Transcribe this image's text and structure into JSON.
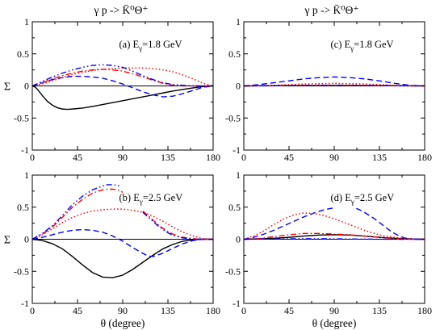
{
  "columns": [
    {
      "title": "γ p -> K̄⁰Θ⁺"
    },
    {
      "title": "γ p -> K̄⁰Θ⁺"
    }
  ],
  "chart_data": [
    {
      "type": "line",
      "panel_label": "(a) E",
      "panel_sub": "γ",
      "panel_energy": "=1.8 GeV",
      "ylabel": "Σ",
      "xlabel": "",
      "xlim": [
        0,
        180
      ],
      "ylim": [
        -1,
        1
      ],
      "xticks": [
        "0",
        "45",
        "90",
        "135",
        "180"
      ],
      "yticks": [
        "-1",
        "-0.5",
        "0",
        "0.5",
        "1"
      ],
      "series": [
        {
          "style": "solid",
          "color": "#000000",
          "x": [
            0,
            3,
            6,
            10,
            15,
            20,
            25,
            30,
            35,
            40,
            50,
            60,
            70,
            80,
            90,
            100,
            110,
            120,
            130,
            140,
            150,
            160,
            170,
            175,
            180
          ],
          "y": [
            0,
            -0.02,
            -0.07,
            -0.15,
            -0.24,
            -0.3,
            -0.34,
            -0.36,
            -0.365,
            -0.36,
            -0.345,
            -0.32,
            -0.29,
            -0.26,
            -0.23,
            -0.2,
            -0.17,
            -0.14,
            -0.11,
            -0.08,
            -0.055,
            -0.03,
            -0.01,
            -0.004,
            0
          ]
        },
        {
          "style": "dashed",
          "color": "#0000ff",
          "x": [
            0,
            10,
            20,
            30,
            40,
            50,
            60,
            70,
            80,
            90,
            100,
            110,
            120,
            130,
            140,
            150,
            160,
            170,
            180
          ],
          "y": [
            0,
            0.05,
            0.1,
            0.13,
            0.15,
            0.15,
            0.14,
            0.12,
            0.08,
            0.03,
            -0.03,
            -0.09,
            -0.14,
            -0.17,
            -0.16,
            -0.12,
            -0.07,
            -0.02,
            0
          ]
        },
        {
          "style": "dotted",
          "color": "#ff0000",
          "x": [
            0,
            10,
            20,
            30,
            40,
            50,
            60,
            70,
            80,
            90,
            100,
            110,
            120,
            130,
            140,
            150,
            160,
            170,
            180
          ],
          "y": [
            0,
            0.03,
            0.08,
            0.13,
            0.18,
            0.21,
            0.24,
            0.26,
            0.27,
            0.28,
            0.28,
            0.28,
            0.27,
            0.25,
            0.22,
            0.17,
            0.11,
            0.04,
            0
          ]
        },
        {
          "style": "dashdot",
          "color": "#ff0000",
          "x": [
            0,
            10,
            20,
            30,
            40,
            50,
            60,
            70,
            80,
            90,
            100,
            110,
            120,
            130,
            140,
            150,
            160,
            170,
            180
          ],
          "y": [
            0,
            0.05,
            0.11,
            0.16,
            0.2,
            0.23,
            0.25,
            0.26,
            0.25,
            0.23,
            0.19,
            0.14,
            0.09,
            0.04,
            0.01,
            0,
            0,
            0,
            0
          ]
        },
        {
          "style": "dashdotdot",
          "color": "#0000ff",
          "x": [
            0,
            10,
            20,
            30,
            40,
            50,
            60,
            70,
            80,
            90,
            100,
            110,
            120,
            130,
            140,
            150,
            160,
            170,
            180
          ],
          "y": [
            0,
            0.07,
            0.14,
            0.2,
            0.25,
            0.29,
            0.32,
            0.33,
            0.32,
            0.29,
            0.23,
            0.16,
            0.1,
            0.05,
            0.02,
            0.01,
            0,
            0,
            0
          ]
        }
      ]
    },
    {
      "type": "line",
      "panel_label": "(c) E",
      "panel_sub": "γ",
      "panel_energy": "=1.8 GeV",
      "ylabel": "",
      "xlabel": "",
      "xlim": [
        0,
        180
      ],
      "ylim": [
        -1,
        1
      ],
      "xticks": [
        "0",
        "45",
        "90",
        "135",
        "180"
      ],
      "yticks": [
        "-1",
        "-0.5",
        "0",
        "0.5",
        "1"
      ],
      "series": [
        {
          "style": "solid",
          "color": "#000000",
          "x": [
            0,
            30,
            60,
            90,
            120,
            150,
            180
          ],
          "y": [
            0,
            0.003,
            0.005,
            0.006,
            0.005,
            0.003,
            0
          ]
        },
        {
          "style": "dashed",
          "color": "#0000ff",
          "x": [
            0,
            15,
            30,
            45,
            60,
            75,
            90,
            105,
            120,
            135,
            150,
            165,
            180
          ],
          "y": [
            0,
            0.02,
            0.05,
            0.08,
            0.11,
            0.13,
            0.14,
            0.13,
            0.11,
            0.08,
            0.04,
            0.01,
            0
          ]
        },
        {
          "style": "dotted",
          "color": "#ff0000",
          "x": [
            0,
            30,
            60,
            90,
            120,
            150,
            180
          ],
          "y": [
            0,
            0.01,
            0.03,
            0.04,
            0.03,
            0.01,
            0
          ]
        },
        {
          "style": "dashdot",
          "color": "#ff0000",
          "x": [
            0,
            30,
            60,
            90,
            120,
            150,
            180
          ],
          "y": [
            0,
            0.005,
            0.01,
            0.012,
            0.01,
            0.005,
            0
          ]
        },
        {
          "style": "dashdotdot",
          "color": "#0000ff",
          "x": [
            0,
            30,
            60,
            90,
            120,
            150,
            180
          ],
          "y": [
            0,
            0.004,
            0.008,
            0.01,
            0.008,
            0.004,
            0
          ]
        }
      ]
    },
    {
      "type": "line",
      "panel_label": "(b) E",
      "panel_sub": "γ",
      "panel_energy": "=2.5 GeV",
      "ylabel": "Σ",
      "xlabel": "θ  (degree)",
      "xlim": [
        0,
        180
      ],
      "ylim": [
        -1,
        1
      ],
      "xticks": [
        "0",
        "45",
        "90",
        "135",
        "180"
      ],
      "yticks": [
        "-1",
        "-0.5",
        "0",
        "0.5",
        "1"
      ],
      "series": [
        {
          "style": "solid",
          "color": "#000000",
          "x": [
            0,
            10,
            20,
            30,
            40,
            50,
            60,
            70,
            80,
            90,
            100,
            110,
            120,
            130,
            140,
            150,
            160,
            170,
            175,
            180
          ],
          "y": [
            0,
            -0.02,
            -0.07,
            -0.15,
            -0.27,
            -0.4,
            -0.52,
            -0.59,
            -0.6,
            -0.56,
            -0.47,
            -0.36,
            -0.25,
            -0.15,
            -0.08,
            -0.03,
            -0.01,
            0,
            0,
            0
          ]
        },
        {
          "style": "dashed",
          "color": "#0000ff",
          "x": [
            0,
            10,
            20,
            30,
            40,
            50,
            60,
            70,
            80,
            90,
            100,
            110,
            115,
            120,
            130,
            140,
            150,
            160,
            170,
            180
          ],
          "y": [
            0,
            0.03,
            0.07,
            0.11,
            0.14,
            0.15,
            0.14,
            0.11,
            0.05,
            -0.03,
            -0.13,
            -0.22,
            -0.26,
            -0.27,
            -0.22,
            -0.14,
            -0.07,
            -0.02,
            0,
            0
          ]
        },
        {
          "style": "dotted",
          "color": "#ff0000",
          "x": [
            0,
            10,
            20,
            30,
            40,
            50,
            60,
            70,
            80,
            90,
            100,
            110,
            120,
            130,
            140,
            150,
            160,
            170,
            180
          ],
          "y": [
            0,
            0.07,
            0.16,
            0.26,
            0.34,
            0.4,
            0.44,
            0.46,
            0.47,
            0.47,
            0.45,
            0.42,
            0.36,
            0.28,
            0.19,
            0.11,
            0.05,
            0.01,
            0
          ]
        },
        {
          "style": "dashdot",
          "color": "#ff0000",
          "x": [
            0,
            10,
            20,
            30,
            40,
            50,
            60,
            70,
            75,
            80,
            85,
            88,
            90
          ],
          "y": [
            0,
            0.08,
            0.19,
            0.34,
            0.5,
            0.62,
            0.72,
            0.77,
            0.78,
            0.78,
            0.77,
            0.75,
            0.73
          ]
        },
        {
          "style": "dashdot",
          "color": "#ff0000",
          "x": [
            110,
            115,
            120,
            125,
            130,
            135,
            140,
            145,
            150,
            155,
            160,
            165,
            170,
            175,
            180
          ],
          "y": [
            0.44,
            0.37,
            0.3,
            0.23,
            0.17,
            0.12,
            0.08,
            0.05,
            0.03,
            0.02,
            0.01,
            0,
            0,
            0,
            0
          ]
        },
        {
          "style": "dashdotdot",
          "color": "#0000ff",
          "x": [
            0,
            10,
            20,
            30,
            40,
            50,
            60,
            70,
            75,
            80,
            85,
            88
          ],
          "y": [
            0,
            0.09,
            0.21,
            0.37,
            0.54,
            0.67,
            0.77,
            0.83,
            0.85,
            0.85,
            0.84,
            0.82
          ]
        },
        {
          "style": "dashdotdot",
          "color": "#0000ff",
          "x": [
            110,
            115,
            120,
            125,
            130,
            135,
            140,
            145,
            150,
            155,
            160,
            165,
            170,
            175,
            180
          ],
          "y": [
            0.42,
            0.35,
            0.28,
            0.21,
            0.15,
            0.1,
            0.06,
            0.04,
            0.02,
            0.01,
            0,
            0,
            0,
            0,
            0
          ]
        }
      ]
    },
    {
      "type": "line",
      "panel_label": "(d) E",
      "panel_sub": "γ",
      "panel_energy": "=2.5 GeV",
      "ylabel": "",
      "xlabel": "θ  (degree)",
      "xlim": [
        0,
        180
      ],
      "ylim": [
        -1,
        1
      ],
      "xticks": [
        "0",
        "45",
        "90",
        "135",
        "180"
      ],
      "yticks": [
        "-1",
        "-0.5",
        "0",
        "0.5",
        "1"
      ],
      "series": [
        {
          "style": "solid",
          "color": "#000000",
          "x": [
            0,
            15,
            30,
            45,
            60,
            75,
            90,
            105,
            120,
            135,
            150,
            165,
            180
          ],
          "y": [
            0,
            0.005,
            0.015,
            0.03,
            0.05,
            0.065,
            0.07,
            0.065,
            0.05,
            0.03,
            0.015,
            0.005,
            0
          ]
        },
        {
          "style": "dashed",
          "color": "#0000ff",
          "x": [
            0,
            10,
            20,
            30,
            40,
            50,
            60,
            70,
            80,
            90
          ],
          "y": [
            0,
            0.03,
            0.08,
            0.14,
            0.21,
            0.28,
            0.35,
            0.41,
            0.46,
            0.49
          ]
        },
        {
          "style": "dashed",
          "color": "#0000ff",
          "x": [
            112,
            115,
            120,
            125,
            130,
            135,
            140,
            145,
            150,
            155,
            160,
            165,
            170,
            175,
            180
          ],
          "y": [
            0.48,
            0.46,
            0.42,
            0.37,
            0.32,
            0.26,
            0.2,
            0.14,
            0.09,
            0.05,
            0.02,
            0.01,
            0,
            0,
            0
          ]
        },
        {
          "style": "dotted",
          "color": "#ff0000",
          "x": [
            0,
            10,
            20,
            30,
            40,
            50,
            60,
            70,
            80,
            90,
            100,
            110,
            120,
            130,
            140,
            150,
            160,
            170,
            180
          ],
          "y": [
            0,
            0.05,
            0.13,
            0.23,
            0.32,
            0.38,
            0.41,
            0.4,
            0.37,
            0.32,
            0.26,
            0.2,
            0.14,
            0.09,
            0.05,
            0.03,
            0.01,
            0,
            0
          ]
        },
        {
          "style": "dashdot",
          "color": "#ff0000",
          "x": [
            0,
            15,
            30,
            45,
            60,
            75,
            90,
            105,
            120,
            135,
            150,
            165,
            180
          ],
          "y": [
            0,
            0.01,
            0.04,
            0.07,
            0.09,
            0.09,
            0.08,
            0.07,
            0.05,
            0.03,
            0.01,
            0,
            0
          ]
        },
        {
          "style": "dashdotdot",
          "color": "#0000ff",
          "x": [
            0,
            15,
            30,
            45,
            60,
            75,
            90,
            105,
            120,
            135,
            150,
            165,
            180
          ],
          "y": [
            0,
            0.002,
            0.005,
            0.007,
            0.008,
            0.007,
            0.006,
            0.004,
            0.002,
            0.001,
            0,
            0,
            0
          ]
        }
      ]
    }
  ]
}
